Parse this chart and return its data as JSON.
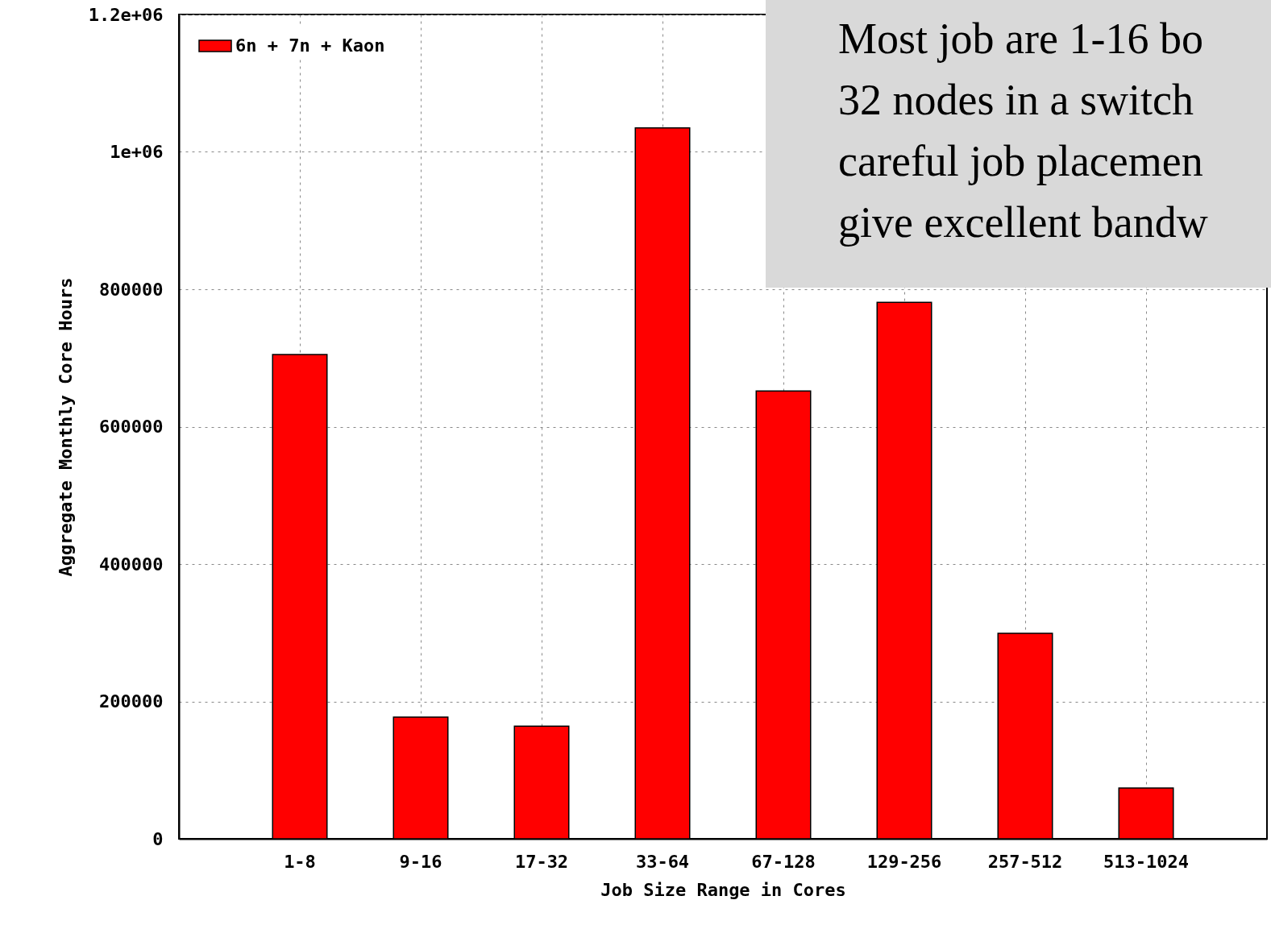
{
  "chart_data": {
    "type": "bar",
    "xlabel": "Job Size Range in Cores",
    "ylabel": "Aggregate Monthly Core Hours",
    "categories": [
      "1-8",
      "9-16",
      "17-32",
      "33-64",
      "67-128",
      "129-256",
      "257-512",
      "513-1024"
    ],
    "series": [
      {
        "name": "6n + 7n + Kaon",
        "color": "#ff0000",
        "values": [
          705000,
          177000,
          164000,
          1035000,
          652000,
          781000,
          299000,
          74000
        ]
      }
    ],
    "ylim": [
      0,
      1200000
    ],
    "yticks": [
      0,
      200000,
      400000,
      600000,
      800000,
      {
        "value": 1000000,
        "label": "1e+06"
      },
      {
        "value": 1200000,
        "label": "1.2e+06"
      }
    ],
    "grid": true,
    "legend": "top left",
    "annotations": [
      "Most job are 1-16 bo\n32 nodes in a switch\ncareful job placemen\ngive excellent bandw"
    ]
  }
}
